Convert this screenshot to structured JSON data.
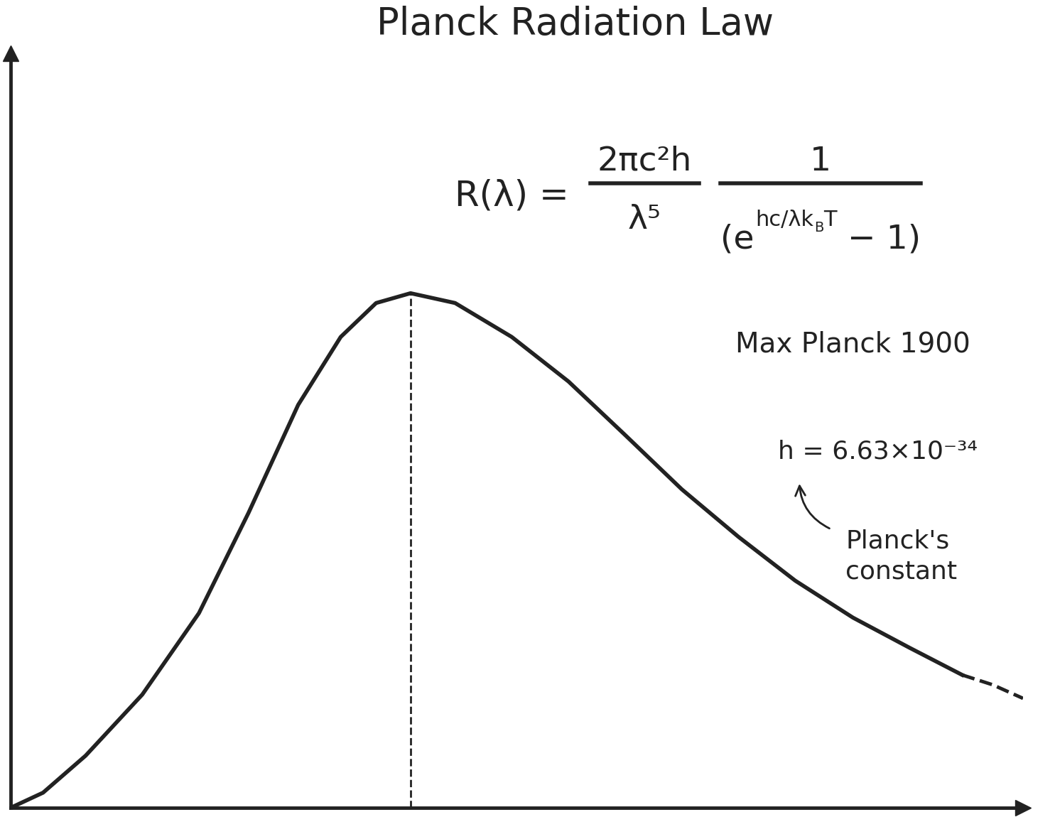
{
  "chart_data": {
    "type": "line",
    "title": "Planck Radiation Law",
    "x": [
      0,
      3.2,
      7.4,
      13.0,
      18.6,
      23.5,
      28.4,
      32.6,
      36.1,
      39.5,
      43.9,
      49.5,
      55.1,
      60.7,
      66.3,
      71.9,
      77.5,
      83.2,
      88.8,
      94.0
    ],
    "series": [
      {
        "color": "#222222",
        "line_style": "solid",
        "values": [
          0,
          2.0,
          6.9,
          15.0,
          25.8,
          39.1,
          53.4,
          62.4,
          66.9,
          68.2,
          66.9,
          62.4,
          56.5,
          49.4,
          42.2,
          35.9,
          30.1,
          25.2,
          21.2,
          17.6
        ]
      },
      {
        "color": "#222222",
        "line_style": "dashed",
        "x": [
          94.0,
          97.0,
          100
        ],
        "values": [
          17.6,
          16.3,
          14.5
        ]
      },
      {
        "color": "#222222",
        "line_style": "dashed",
        "x": [
          39.5,
          39.5
        ],
        "values": [
          0,
          68.2
        ]
      }
    ],
    "xlim": [
      0,
      100
    ],
    "ylim": [
      0,
      100
    ],
    "xticks": [],
    "yticks": [],
    "tick_labels": false,
    "grid": false,
    "formula": {
      "lhs": "R(λ) =",
      "fraction_1": {
        "numerator": "2πc²h",
        "denominator": "λ⁵"
      },
      "fraction_2": {
        "numerator": "1",
        "denominator_open": "(e",
        "exponent": "hc/λk",
        "exponent_subscript": "B",
        "exponent_tail": "T",
        "denominator_close": " − 1)"
      }
    },
    "annotations": {
      "author": "Max Planck 1900",
      "constant": "h = 6.63×10⁻³⁴",
      "constant_name": "Planck's\nconstant"
    }
  }
}
